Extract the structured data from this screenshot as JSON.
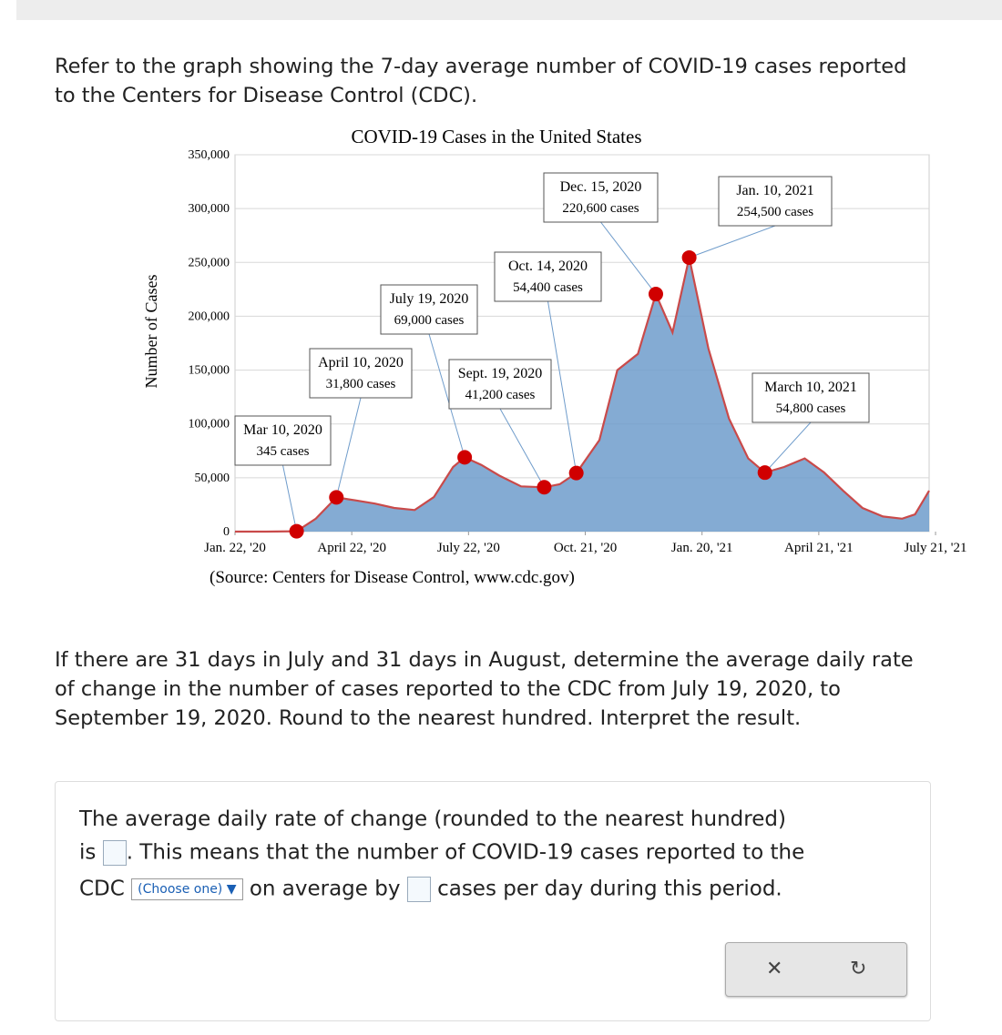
{
  "question": {
    "intro": "Refer to the graph showing the 7-day average number of COVID-19 cases reported to the Centers for Disease Control (CDC).",
    "prompt": "If there are 31 days in July and 31 days in August, determine the average daily rate of change in the number of cases reported to the CDC from July 19, 2020, to September 19, 2020. Round to the nearest hundred. Interpret the result."
  },
  "chart_data": {
    "type": "line",
    "title": "COVID-19 Cases in the United States",
    "y_label": "Number of Cases",
    "source": "(Source: Centers for Disease Control, www.cdc.gov)",
    "x": [
      "2020-01-22",
      "2020-02-15",
      "2020-03-10",
      "2020-03-25",
      "2020-04-10",
      "2020-04-25",
      "2020-05-10",
      "2020-05-25",
      "2020-06-10",
      "2020-06-25",
      "2020-07-10",
      "2020-07-19",
      "2020-08-01",
      "2020-08-15",
      "2020-09-01",
      "2020-09-19",
      "2020-10-01",
      "2020-10-14",
      "2020-11-01",
      "2020-11-15",
      "2020-12-01",
      "2020-12-15",
      "2020-12-28",
      "2021-01-10",
      "2021-01-25",
      "2021-02-10",
      "2021-02-25",
      "2021-03-10",
      "2021-03-25",
      "2021-04-10",
      "2021-04-25",
      "2021-05-10",
      "2021-05-25",
      "2021-06-10",
      "2021-06-25",
      "2021-07-05",
      "2021-07-16"
    ],
    "series": [
      {
        "name": "7-day average",
        "color": "#c94a4a",
        "fill": "#6f9ccb",
        "values": [
          0,
          0,
          345,
          12000,
          31800,
          29000,
          26000,
          22000,
          20000,
          32000,
          60000,
          69000,
          62000,
          52000,
          42000,
          41200,
          44000,
          54400,
          85000,
          150000,
          165000,
          220600,
          185000,
          254500,
          170000,
          105000,
          68000,
          54800,
          60000,
          68000,
          55000,
          38000,
          22000,
          14000,
          12000,
          16000,
          38000
        ]
      }
    ],
    "xlim": [
      "2020-01-22",
      "2021-07-16"
    ],
    "xticks": [
      {
        "value": "2020-01-22",
        "label": "Jan. 22, '20"
      },
      {
        "value": "2020-04-22",
        "label": "April 22, '20"
      },
      {
        "value": "2020-07-22",
        "label": "July 22, '20"
      },
      {
        "value": "2020-10-21",
        "label": "Oct. 21, '20"
      },
      {
        "value": "2021-01-20",
        "label": "Jan. 20, '21"
      },
      {
        "value": "2021-04-21",
        "label": "April 21, '21"
      },
      {
        "value": "2021-07-21",
        "label": "July 21, '21"
      }
    ],
    "ylim": [
      0,
      350000
    ],
    "yticks": [
      0,
      {
        "value": 50000,
        "label": "50,000"
      },
      {
        "value": 100000,
        "label": "100,000"
      },
      {
        "value": 150000,
        "label": "150,000"
      },
      {
        "value": 200000,
        "label": "200,000"
      },
      {
        "value": 250000,
        "label": "250,000"
      },
      {
        "value": 300000,
        "label": "300,000"
      },
      {
        "value": 350000,
        "label": "350,000"
      }
    ],
    "grid": true,
    "point_color": "#d00000",
    "annotations": [
      {
        "label": "Mar 10, 2020",
        "x": "2020-03-10",
        "value": 345,
        "value_label": "345 cases"
      },
      {
        "label": "April 10, 2020",
        "x": "2020-04-10",
        "value": 31800,
        "value_label": "31,800 cases"
      },
      {
        "label": "July 19, 2020",
        "x": "2020-07-19",
        "value": 69000,
        "value_label": "69,000 cases"
      },
      {
        "label": "Sept. 19, 2020",
        "x": "2020-09-19",
        "value": 41200,
        "value_label": "41,200 cases"
      },
      {
        "label": "Oct. 14, 2020",
        "x": "2020-10-14",
        "value": 54400,
        "value_label": "54,400 cases"
      },
      {
        "label": "Dec. 15, 2020",
        "x": "2020-12-15",
        "value": 220600,
        "value_label": "220,600 cases"
      },
      {
        "label": "Jan. 10, 2021",
        "x": "2021-01-10",
        "value": 254500,
        "value_label": "254,500 cases"
      },
      {
        "label": "March 10, 2021",
        "x": "2021-03-10",
        "value": 54800,
        "value_label": "54,800 cases"
      }
    ]
  },
  "answer": {
    "part1": "The average daily rate of change (rounded to the nearest hundred)",
    "part2": "is",
    "part3": ". This means that the number of COVID-19 cases reported to the",
    "part4": "CDC",
    "select": "(Choose one)",
    "part5": "on average by",
    "part6": "cases per day during this period."
  }
}
